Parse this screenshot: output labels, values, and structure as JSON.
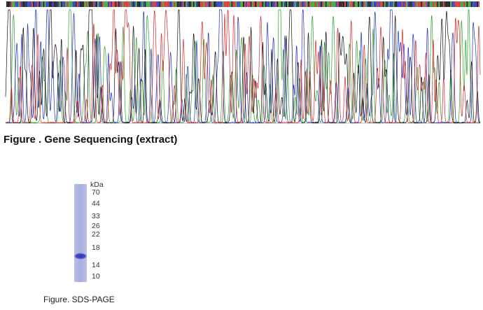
{
  "sequencing": {
    "caption": "Figure . Gene Sequencing (extract)"
  },
  "sds_page": {
    "unit": "kDa",
    "markers": [
      "70",
      "44",
      "33",
      "26",
      "22",
      "18",
      "14",
      "10"
    ],
    "caption": "Figure. SDS-PAGE"
  }
}
